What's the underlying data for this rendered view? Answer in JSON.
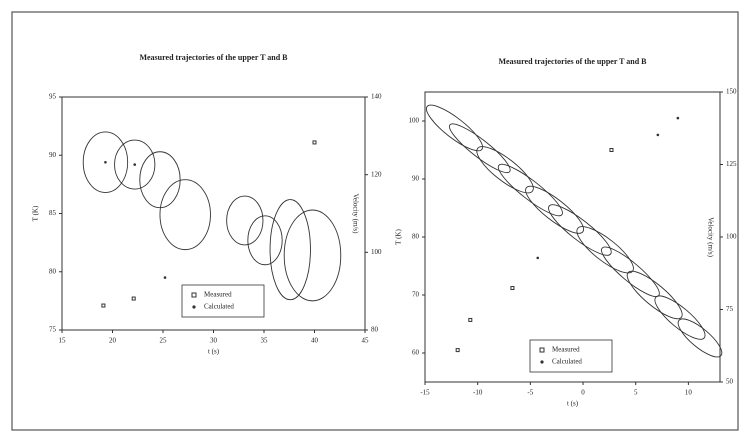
{
  "chart_data": [
    {
      "type": "scatter",
      "title": "Measured trajectories of the upper T and B",
      "x_label": "t (s)",
      "y_label": "T (K)",
      "y2_label": "Velocity (m/s)",
      "xlim": [
        15,
        45
      ],
      "xticks": [
        15,
        20,
        25,
        30,
        35,
        40,
        45
      ],
      "ylim": [
        75,
        95
      ],
      "yticks": [
        75,
        80,
        85,
        90,
        95
      ],
      "y2lim": [
        80,
        140
      ],
      "y2ticks": [
        80,
        100,
        120,
        140
      ],
      "series": [
        {
          "name": "Measured",
          "color": "#333333",
          "marker": "square",
          "x": [
            19.1,
            22.1,
            40.0
          ],
          "values": [
            77.1,
            77.7,
            91.1
          ]
        },
        {
          "name": "Calculated",
          "color": "#333333",
          "marker": "dot",
          "x": [
            25.2,
            19.3,
            22.2
          ],
          "values": [
            79.5,
            89.4,
            89.2
          ]
        }
      ],
      "ellipses": [
        {
          "cx": 19.3,
          "cy": 89.4,
          "rx": 2.2,
          "ry": 2.6,
          "angle": 0
        },
        {
          "cx": 22.2,
          "cy": 89.2,
          "rx": 2.0,
          "ry": 2.1,
          "angle": 0
        },
        {
          "cx": 24.7,
          "cy": 87.9,
          "rx": 2.0,
          "ry": 2.4,
          "angle": 0
        },
        {
          "cx": 27.2,
          "cy": 84.9,
          "rx": 2.5,
          "ry": 3.0,
          "angle": 0
        },
        {
          "cx": 33.1,
          "cy": 84.4,
          "rx": 1.8,
          "ry": 2.1,
          "angle": 0
        },
        {
          "cx": 35.1,
          "cy": 82.7,
          "rx": 1.7,
          "ry": 2.1,
          "angle": 0
        },
        {
          "cx": 37.6,
          "cy": 81.9,
          "rx": 2.0,
          "ry": 4.3,
          "angle": 0
        },
        {
          "cx": 39.8,
          "cy": 81.4,
          "rx": 2.8,
          "ry": 3.9,
          "angle": 0
        }
      ]
    },
    {
      "type": "scatter",
      "title": "Measured trajectories of the upper T and B",
      "x_label": "t (s)",
      "y_label": "T (K)",
      "y2_label": "Velocity (m/s)",
      "xlim": [
        -15,
        13
      ],
      "xticks": [
        -15,
        -10,
        -5,
        0,
        5,
        10
      ],
      "ylim": [
        55,
        105
      ],
      "yticks": [
        60,
        70,
        80,
        90,
        100
      ],
      "y2lim": [
        50,
        150
      ],
      "y2ticks": [
        50,
        75,
        100,
        125,
        150
      ],
      "series": [
        {
          "name": "Measured",
          "color": "#333333",
          "marker": "square",
          "x": [
            -11.9,
            -10.7,
            -6.7,
            2.7
          ],
          "values": [
            60.5,
            65.7,
            71.2,
            95.0
          ]
        },
        {
          "name": "Calculated",
          "color": "#333333",
          "marker": "dot",
          "x": [
            -4.3,
            7.1,
            9.0
          ],
          "values": [
            76.4,
            97.6,
            100.5
          ]
        }
      ],
      "ellipses": [
        {
          "cx": -12.2,
          "cy": 98.8,
          "rx": 3.3,
          "ry": 1.7,
          "angle": 38
        },
        {
          "cx": -9.8,
          "cy": 95.3,
          "rx": 3.6,
          "ry": 1.5,
          "angle": 38
        },
        {
          "cx": -7.4,
          "cy": 91.6,
          "rx": 3.3,
          "ry": 1.9,
          "angle": 38
        },
        {
          "cx": -5.0,
          "cy": 88.1,
          "rx": 3.8,
          "ry": 1.6,
          "angle": 38
        },
        {
          "cx": -2.7,
          "cy": 84.7,
          "rx": 3.4,
          "ry": 1.8,
          "angle": 38
        },
        {
          "cx": -0.3,
          "cy": 81.2,
          "rx": 3.7,
          "ry": 1.7,
          "angle": 38
        },
        {
          "cx": 2.1,
          "cy": 77.8,
          "rx": 3.3,
          "ry": 1.9,
          "angle": 38
        },
        {
          "cx": 4.5,
          "cy": 74.0,
          "rx": 3.5,
          "ry": 1.6,
          "angle": 40
        },
        {
          "cx": 6.8,
          "cy": 70.0,
          "rx": 3.3,
          "ry": 1.8,
          "angle": 40
        },
        {
          "cx": 9.2,
          "cy": 66.1,
          "rx": 3.0,
          "ry": 1.7,
          "angle": 40
        },
        {
          "cx": 11.1,
          "cy": 62.6,
          "rx": 2.6,
          "ry": 1.6,
          "angle": 40
        }
      ]
    }
  ]
}
